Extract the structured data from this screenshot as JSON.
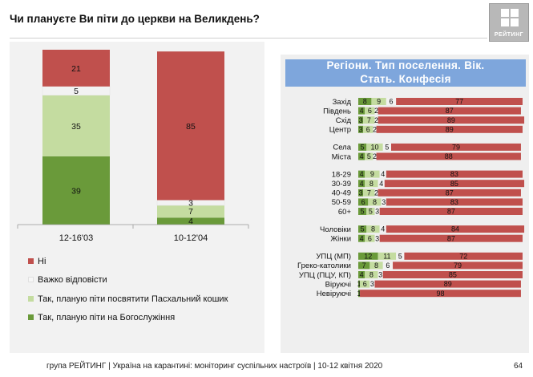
{
  "title": "Чи плануєте Ви піти до церкви на Великдень?",
  "logo": {
    "text": "РЕЙТИНГ"
  },
  "right_title_lines": [
    "Регіони. Тип поселення. Вік.",
    "Стать. Конфесія"
  ],
  "footer": "група РЕЙТИНГ | Україна на карантині: моніторинг суспільних настроїв  | 10-12 квітня 2020",
  "page_number": "64",
  "colors": {
    "ni": "#c0504d",
    "vazhko": "#f2f2f2",
    "paskhalnyi": "#c4dca0",
    "bogosluzhinnia": "#6a9a3a",
    "header": "#7ea6dc"
  },
  "legend": [
    {
      "key": "ni",
      "label": "Ні"
    },
    {
      "key": "vazhko",
      "label": "Важко відповісти"
    },
    {
      "key": "paskhalnyi",
      "label": "Так, планую піти посвятити Пасхальний кошик"
    },
    {
      "key": "bogosluzhinnia",
      "label": "Так, планую піти на Богослужіння"
    }
  ],
  "chart_data": [
    {
      "type": "bar",
      "stacked": true,
      "orientation": "vertical",
      "categories": [
        "12-16'03",
        "10-12'04"
      ],
      "series": [
        {
          "key": "bogosluzhinnia",
          "name": "Так, планую піти на Богослужіння",
          "values": [
            39,
            4
          ]
        },
        {
          "key": "paskhalnyi",
          "name": "Так, планую піти посвятити Пасхальний кошик",
          "values": [
            35,
            7
          ]
        },
        {
          "key": "vazhko",
          "name": "Важко відповісти",
          "values": [
            5,
            3
          ]
        },
        {
          "key": "ni",
          "name": "Ні",
          "values": [
            21,
            85
          ]
        }
      ],
      "ylim": [
        0,
        100
      ],
      "legend_position": "bottom-left"
    },
    {
      "type": "bar",
      "stacked": true,
      "orientation": "horizontal",
      "xlim": [
        0,
        100
      ],
      "rows": [
        {
          "label": "Захід",
          "group": 0,
          "values": [
            8,
            9,
            6,
            77
          ]
        },
        {
          "label": "Південь",
          "group": 0,
          "values": [
            4,
            6,
            2,
            87
          ]
        },
        {
          "label": "Схід",
          "group": 0,
          "values": [
            3,
            7,
            2,
            89
          ]
        },
        {
          "label": "Центр",
          "group": 0,
          "values": [
            3,
            6,
            2,
            89
          ]
        },
        {
          "label": "Села",
          "group": 1,
          "values": [
            5,
            10,
            5,
            79
          ]
        },
        {
          "label": "Міста",
          "group": 1,
          "values": [
            4,
            5,
            2,
            88
          ]
        },
        {
          "label": "18-29",
          "group": 2,
          "values": [
            4,
            9,
            4,
            83
          ]
        },
        {
          "label": "30-39",
          "group": 2,
          "values": [
            4,
            8,
            4,
            85
          ]
        },
        {
          "label": "40-49",
          "group": 2,
          "values": [
            3,
            7,
            2,
            87
          ]
        },
        {
          "label": "50-59",
          "group": 2,
          "values": [
            6,
            8,
            3,
            83
          ]
        },
        {
          "label": "60+",
          "group": 2,
          "values": [
            5,
            5,
            3,
            87
          ]
        },
        {
          "label": "Чоловіки",
          "group": 3,
          "values": [
            5,
            8,
            4,
            84
          ]
        },
        {
          "label": "Жінки",
          "group": 3,
          "values": [
            4,
            6,
            3,
            87
          ]
        },
        {
          "label": "УПЦ (МП)",
          "group": 4,
          "values": [
            12,
            11,
            5,
            72
          ]
        },
        {
          "label": "Греко-католики",
          "group": 4,
          "values": [
            7,
            8,
            6,
            79
          ]
        },
        {
          "label": "УПЦ (ПЦУ, КП)",
          "group": 4,
          "values": [
            4,
            8,
            3,
            85
          ]
        },
        {
          "label": "Віруючі",
          "group": 4,
          "values": [
            1,
            6,
            3,
            89
          ]
        },
        {
          "label": "Невіруючі",
          "group": 4,
          "values": [
            1,
            0,
            0,
            98
          ]
        }
      ],
      "series_order": [
        "bogosluzhinnia",
        "paskhalnyi",
        "vazhko",
        "ni"
      ]
    }
  ]
}
